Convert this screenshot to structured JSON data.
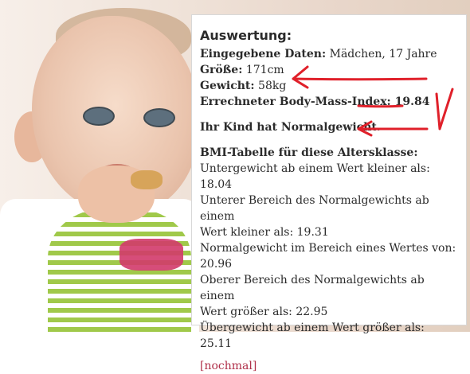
{
  "result": {
    "title": "Auswertung:",
    "input_label": "Eingegebene Daten:",
    "input_value": "Mädchen, 17 Jahre",
    "height_label": "Größe:",
    "height_value": "171cm",
    "weight_label": "Gewicht:",
    "weight_value": "58kg",
    "bmi_label": "Errechneter Body-Mass-Index:",
    "bmi_value": "19.84",
    "status_text": "Ihr Kind hat Normalgewicht."
  },
  "table": {
    "heading": "BMI-Tabelle für diese Altersklasse:",
    "lines": [
      "Untergewicht ab einem Wert kleiner als: 18.04",
      "Unterer Bereich des Normalgewichts ab einem",
      "Wert kleiner als: 19.31",
      "Normalgewicht im Bereich eines Wertes von:",
      "20.96",
      "Oberer Bereich des Normalgewichts ab einem",
      "Wert größer als: 22.95",
      "Übergewicht ab einem Wert größer als: 25.11"
    ]
  },
  "actions": {
    "again_link": "[nochmal]"
  },
  "colors": {
    "annotation_red": "#e0202a",
    "link_color": "#b0304a"
  }
}
